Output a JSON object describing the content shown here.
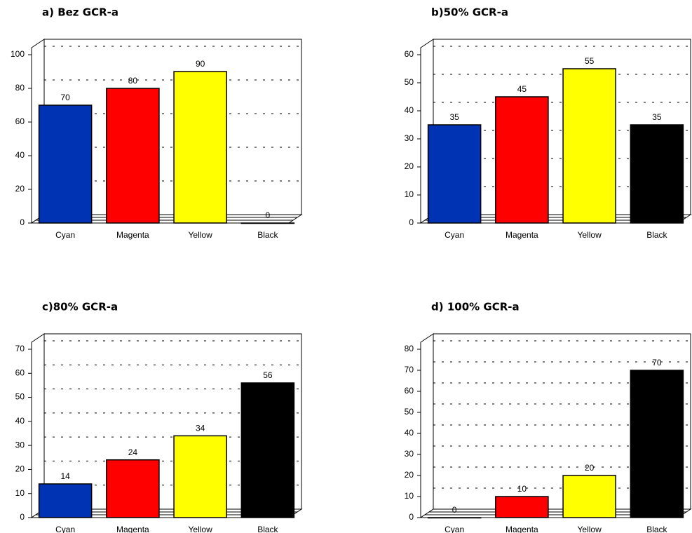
{
  "chart_data": [
    {
      "type": "bar",
      "title": "a) Bez GCR-a",
      "categories": [
        "Cyan",
        "Magenta",
        "Yellow",
        "Black"
      ],
      "values": [
        70,
        80,
        90,
        0
      ],
      "colors": [
        "#0033b3",
        "#ff0000",
        "#ffff00",
        "#000000"
      ],
      "ylim": [
        0,
        100
      ],
      "yticks": [
        0,
        20,
        40,
        60,
        80,
        100
      ],
      "grid": true
    },
    {
      "type": "bar",
      "title": "b)50% GCR-a",
      "categories": [
        "Cyan",
        "Magenta",
        "Yellow",
        "Black"
      ],
      "values": [
        35,
        45,
        55,
        35
      ],
      "colors": [
        "#0033b3",
        "#ff0000",
        "#ffff00",
        "#000000"
      ],
      "ylim": [
        0,
        60
      ],
      "yticks": [
        0,
        10,
        20,
        30,
        40,
        50,
        60
      ],
      "grid": true
    },
    {
      "type": "bar",
      "title": "c)80% GCR-a",
      "categories": [
        "Cyan",
        "Magenta",
        "Yellow",
        "Black"
      ],
      "values": [
        14,
        24,
        34,
        56
      ],
      "colors": [
        "#0033b3",
        "#ff0000",
        "#ffff00",
        "#000000"
      ],
      "ylim": [
        0,
        70
      ],
      "yticks": [
        0,
        10,
        20,
        30,
        40,
        50,
        60,
        70
      ],
      "grid": true
    },
    {
      "type": "bar",
      "title": "d) 100% GCR-a",
      "categories": [
        "Cyan",
        "Magenta",
        "Yellow",
        "Black"
      ],
      "values": [
        0,
        10,
        20,
        70
      ],
      "colors": [
        "#0033b3",
        "#ff0000",
        "#ffff00",
        "#000000"
      ],
      "ylim": [
        0,
        80
      ],
      "yticks": [
        0,
        10,
        20,
        30,
        40,
        50,
        60,
        70,
        80
      ],
      "grid": true
    }
  ]
}
